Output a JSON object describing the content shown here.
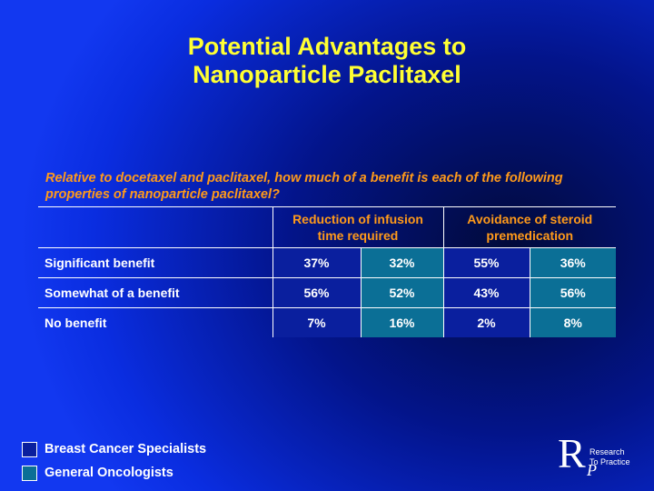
{
  "title": [
    "Potential Advantages to",
    "Nanoparticle Paclitaxel"
  ],
  "question": "Relative to docetaxel and paclitaxel, how much of a benefit is each of the following properties of nanoparticle paclitaxel?",
  "table": {
    "headers": [
      {
        "line1": "Reduction of infusion",
        "line2": "time required"
      },
      {
        "line1": "Avoidance of steroid",
        "line2": "premedication"
      }
    ],
    "rows": [
      {
        "label": "Significant benefit",
        "values": [
          "37%",
          "32%",
          "55%",
          "36%"
        ]
      },
      {
        "label": "Somewhat of a benefit",
        "values": [
          "56%",
          "52%",
          "43%",
          "56%"
        ]
      },
      {
        "label": "No benefit",
        "values": [
          "7%",
          "16%",
          "2%",
          "8%"
        ]
      }
    ]
  },
  "legend": [
    {
      "label": "Breast Cancer Specialists",
      "color": "#0a1f9e"
    },
    {
      "label": "General Oncologists",
      "color": "#0b6f96"
    }
  ],
  "logo": {
    "mark": "R",
    "mark_sub": "P",
    "line1": "Research",
    "line2": "To Practice"
  },
  "colors": {
    "title": "#ffff33",
    "question": "#ff9a1a",
    "bcs": "#0a1f9e",
    "go": "#0b6f96"
  }
}
